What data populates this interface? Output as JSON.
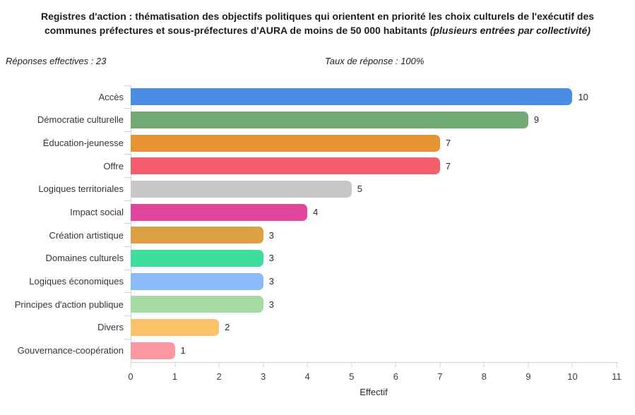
{
  "title": {
    "main": "Registres d'action : thématisation des objectifs politiques qui orientent en priorité les choix culturels de l'exécutif des communes préfectures et sous-préfectures d'AURA de moins de 50 000 habitants ",
    "note": "(plusieurs entrées par collectivité)"
  },
  "meta": {
    "responses": "Réponses effectives : 23",
    "rate": "Taux de réponse : 100%"
  },
  "chart_data": {
    "type": "bar",
    "orientation": "horizontal",
    "title": "Registres d'action : thématisation des objectifs politiques qui orientent en priorité les choix culturels de l'exécutif des communes préfectures et sous-préfectures d'AURA de moins de 50 000 habitants (plusieurs entrées par collectivité)",
    "categories": [
      "Accès",
      "Démocratie culturelle",
      "Éducation-jeunesse",
      "Offre",
      "Logiques territoriales",
      "Impact social",
      "Création artistique",
      "Domaines culturels",
      "Logiques économiques",
      "Principes d'action publique",
      "Divers",
      "Gouvernance-coopération"
    ],
    "values": [
      10,
      9,
      7,
      7,
      5,
      4,
      3,
      3,
      3,
      3,
      2,
      1
    ],
    "bar_colors": [
      "#4a8de4",
      "#72aa74",
      "#e79232",
      "#f65e6d",
      "#c7c7c7",
      "#e0459c",
      "#dda144",
      "#41dd9e",
      "#8cb9f8",
      "#a5dba5",
      "#fbc269",
      "#fa97a1"
    ],
    "value_labels": [
      10,
      9,
      7,
      7,
      5,
      4,
      3,
      3,
      3,
      3,
      2,
      1
    ],
    "xlabel": "Effectif",
    "xlim": [
      0,
      11
    ],
    "x_ticks": [
      0,
      1,
      2,
      3,
      4,
      5,
      6,
      7,
      8,
      9,
      10,
      11
    ],
    "grid": "off",
    "legend": "none",
    "axis_color": "#c9d3e4"
  }
}
